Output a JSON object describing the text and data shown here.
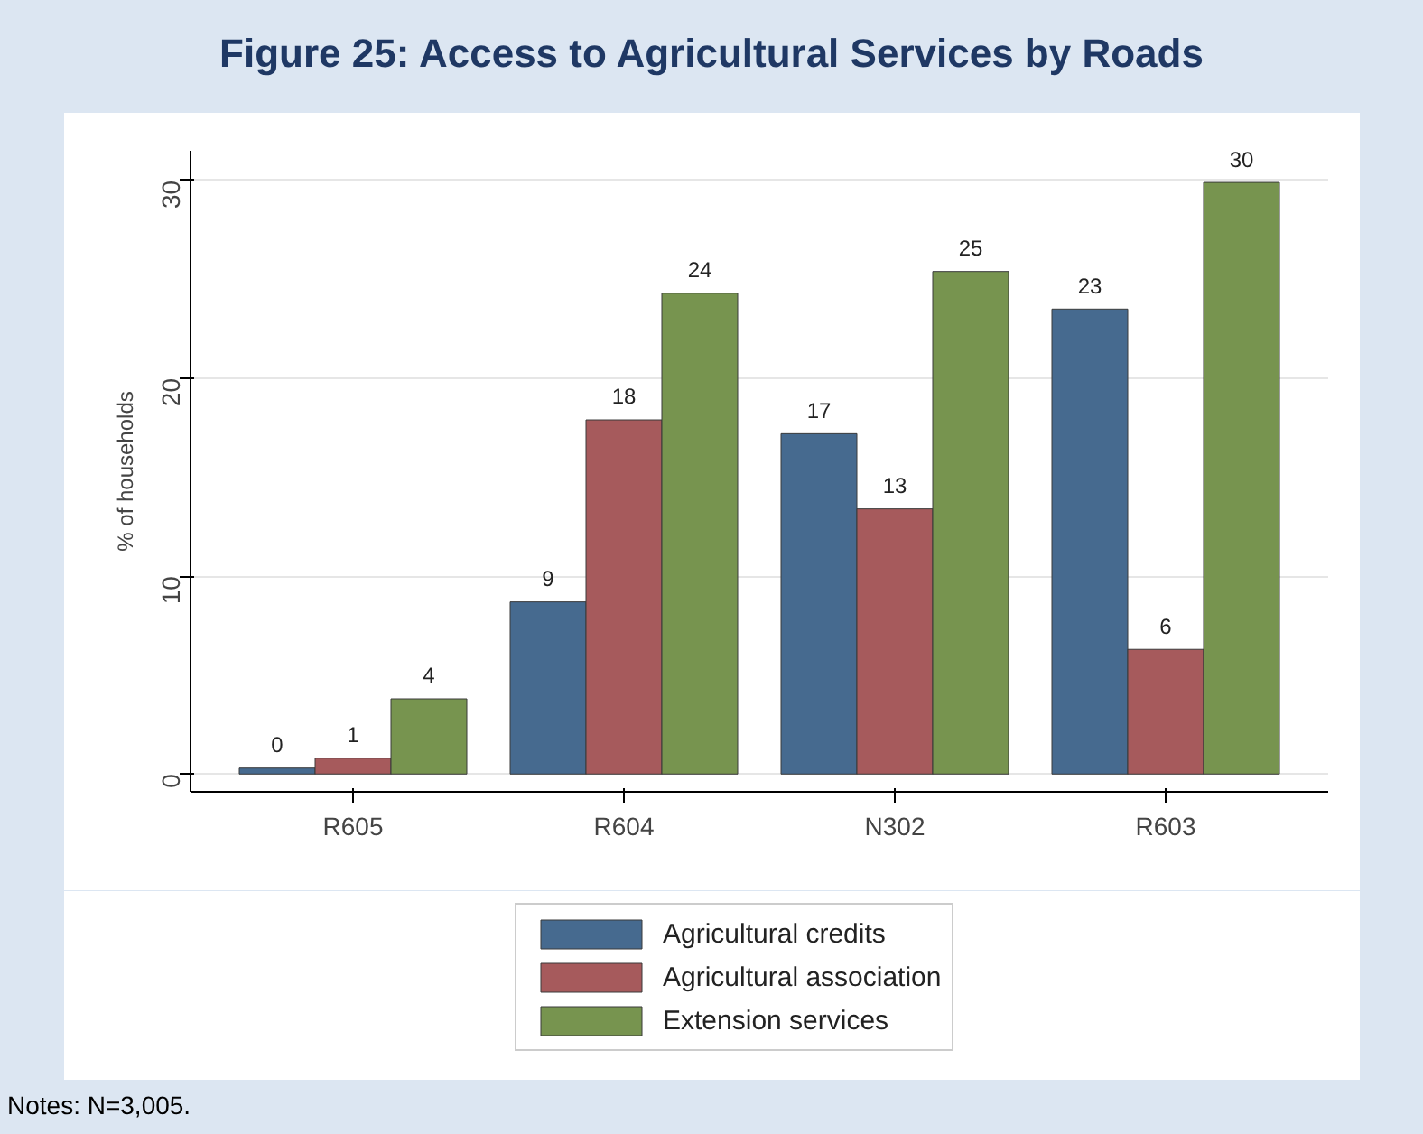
{
  "chart_data": {
    "type": "bar",
    "title": "Figure 25:  Access to Agricultural Services by Roads",
    "ylabel": "% of households",
    "categories": [
      "R605",
      "R604",
      "N302",
      "R603"
    ],
    "series": [
      {
        "name": "Agricultural credits",
        "color": "#466a8f",
        "values": [
          0.3,
          8.7,
          17.2,
          23.5
        ],
        "value_labels": [
          "0",
          "9",
          "17",
          "23"
        ]
      },
      {
        "name": "Agricultural association",
        "color": "#a65a5c",
        "values": [
          0.8,
          17.9,
          13.4,
          6.3
        ],
        "value_labels": [
          "1",
          "18",
          "13",
          "6"
        ]
      },
      {
        "name": "Extension services",
        "color": "#77944f",
        "values": [
          3.8,
          24.3,
          25.4,
          29.9
        ],
        "value_labels": [
          "4",
          "24",
          "25",
          "30"
        ]
      }
    ],
    "ylim": [
      -0.9,
      31.5
    ],
    "yticks": [
      0,
      10,
      20,
      30
    ],
    "grid": "y",
    "legend": "bottom",
    "annotations": [
      "Notes: N=3,005."
    ]
  }
}
